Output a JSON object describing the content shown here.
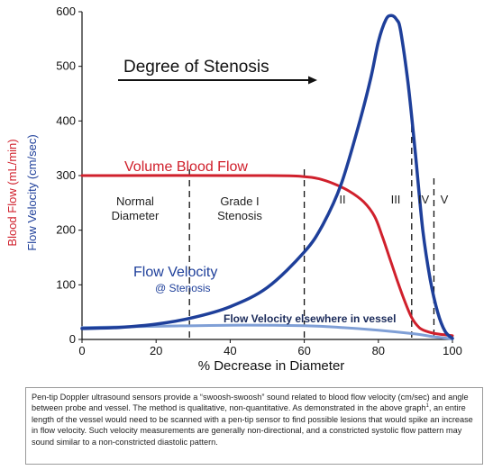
{
  "chart_data": {
    "type": "line",
    "title": "Degree of Stenosis",
    "xlabel": "% Decrease in Diameter",
    "ylabel_blood_flow": "Blood Flow (mL/min)",
    "ylabel_flow_velocity": "Flow Velocity (cm/sec)",
    "xlim": [
      0,
      100
    ],
    "ylim": [
      0,
      600
    ],
    "x_ticks": [
      "0",
      "20",
      "40",
      "60",
      "80",
      "100"
    ],
    "y_ticks": [
      "0",
      "100",
      "200",
      "300",
      "400",
      "500",
      "600"
    ],
    "grade_lines_x": [
      29,
      60,
      89,
      95
    ],
    "series": [
      {
        "name": "Volume Blood Flow",
        "color": "#d0202c",
        "x": [
          0,
          50,
          60,
          64,
          68,
          72,
          76,
          79,
          81,
          83,
          85,
          87,
          89,
          91,
          93,
          96,
          100
        ],
        "y": [
          300,
          300,
          298,
          294,
          285,
          272,
          252,
          225,
          190,
          150,
          110,
          72,
          40,
          22,
          15,
          10,
          7
        ]
      },
      {
        "name": "Flow Velocity",
        "sublabel": "@ Stenosis",
        "color": "#1e3f9a",
        "x": [
          0,
          10,
          20,
          30,
          40,
          50,
          60,
          65,
          70,
          75,
          78,
          80,
          82,
          83.5,
          85,
          86,
          88,
          90,
          92,
          94,
          96,
          98,
          100
        ],
        "y": [
          20,
          22,
          28,
          40,
          60,
          95,
          160,
          210,
          285,
          400,
          480,
          545,
          585,
          593,
          585,
          565,
          470,
          340,
          200,
          110,
          50,
          15,
          2
        ]
      },
      {
        "name": "Flow Velocity elsewhere in vessel",
        "color": "#7f9fd6",
        "x": [
          0,
          20,
          40,
          60,
          70,
          80,
          90,
          95,
          100
        ],
        "y": [
          22,
          24,
          26,
          25,
          22,
          17,
          10,
          5,
          1
        ]
      }
    ],
    "annotations": {
      "normal_diameter": [
        "Normal",
        "Diameter"
      ],
      "grade_i": [
        "Grade I",
        "Stenosis"
      ],
      "grade_ii": "II",
      "grade_iii": "III",
      "grade_iv": "IV",
      "grade_v": "V"
    },
    "grid": false,
    "legend": "none"
  },
  "caption": {
    "before_sup": "Pen-tip Doppler ultrasound sensors provide a “swoosh-swoosh” sound related to blood flow velocity (cm/sec) and angle between probe and vessel. The method is qualitative, non-quantitative. As demonstrated in the above graph",
    "sup": "1",
    "after_sup": ", an entire length of the vessel would need to be scanned with a pen-tip sensor to find possible lesions that would spike an increase in flow velocity. Such velocity measurements are generally non-directional, and a constricted systolic flow pattern may sound similar to a non-constricted diastolic pattern."
  }
}
